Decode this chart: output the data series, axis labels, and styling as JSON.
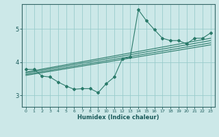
{
  "bg_color": "#cce8e8",
  "grid_color": "#99cccc",
  "line_color": "#2a7a6a",
  "xlabel": "Humidex (Indice chaleur)",
  "xlim": [
    -0.5,
    23.5
  ],
  "ylim": [
    2.65,
    5.75
  ],
  "yticks": [
    3,
    4,
    5
  ],
  "xticks": [
    0,
    1,
    2,
    3,
    4,
    5,
    6,
    7,
    8,
    9,
    10,
    11,
    12,
    13,
    14,
    15,
    16,
    17,
    18,
    19,
    20,
    21,
    22,
    23
  ],
  "main_curve_x": [
    0,
    1,
    2,
    3,
    4,
    5,
    6,
    7,
    8,
    9,
    10,
    11,
    12,
    13,
    14,
    15,
    16,
    17,
    18,
    19,
    20,
    21,
    22,
    23
  ],
  "main_curve_y": [
    3.78,
    3.78,
    3.58,
    3.55,
    3.4,
    3.28,
    3.18,
    3.2,
    3.2,
    3.08,
    3.35,
    3.55,
    4.1,
    4.15,
    5.58,
    5.25,
    4.98,
    4.72,
    4.65,
    4.65,
    4.55,
    4.72,
    4.72,
    4.88
  ],
  "line1_x": [
    0,
    23
  ],
  "line1_y": [
    3.6,
    4.52
  ],
  "line2_x": [
    0,
    23
  ],
  "line2_y": [
    3.63,
    4.58
  ],
  "line3_x": [
    0,
    23
  ],
  "line3_y": [
    3.67,
    4.65
  ],
  "line4_x": [
    0,
    23
  ],
  "line4_y": [
    3.7,
    4.72
  ]
}
